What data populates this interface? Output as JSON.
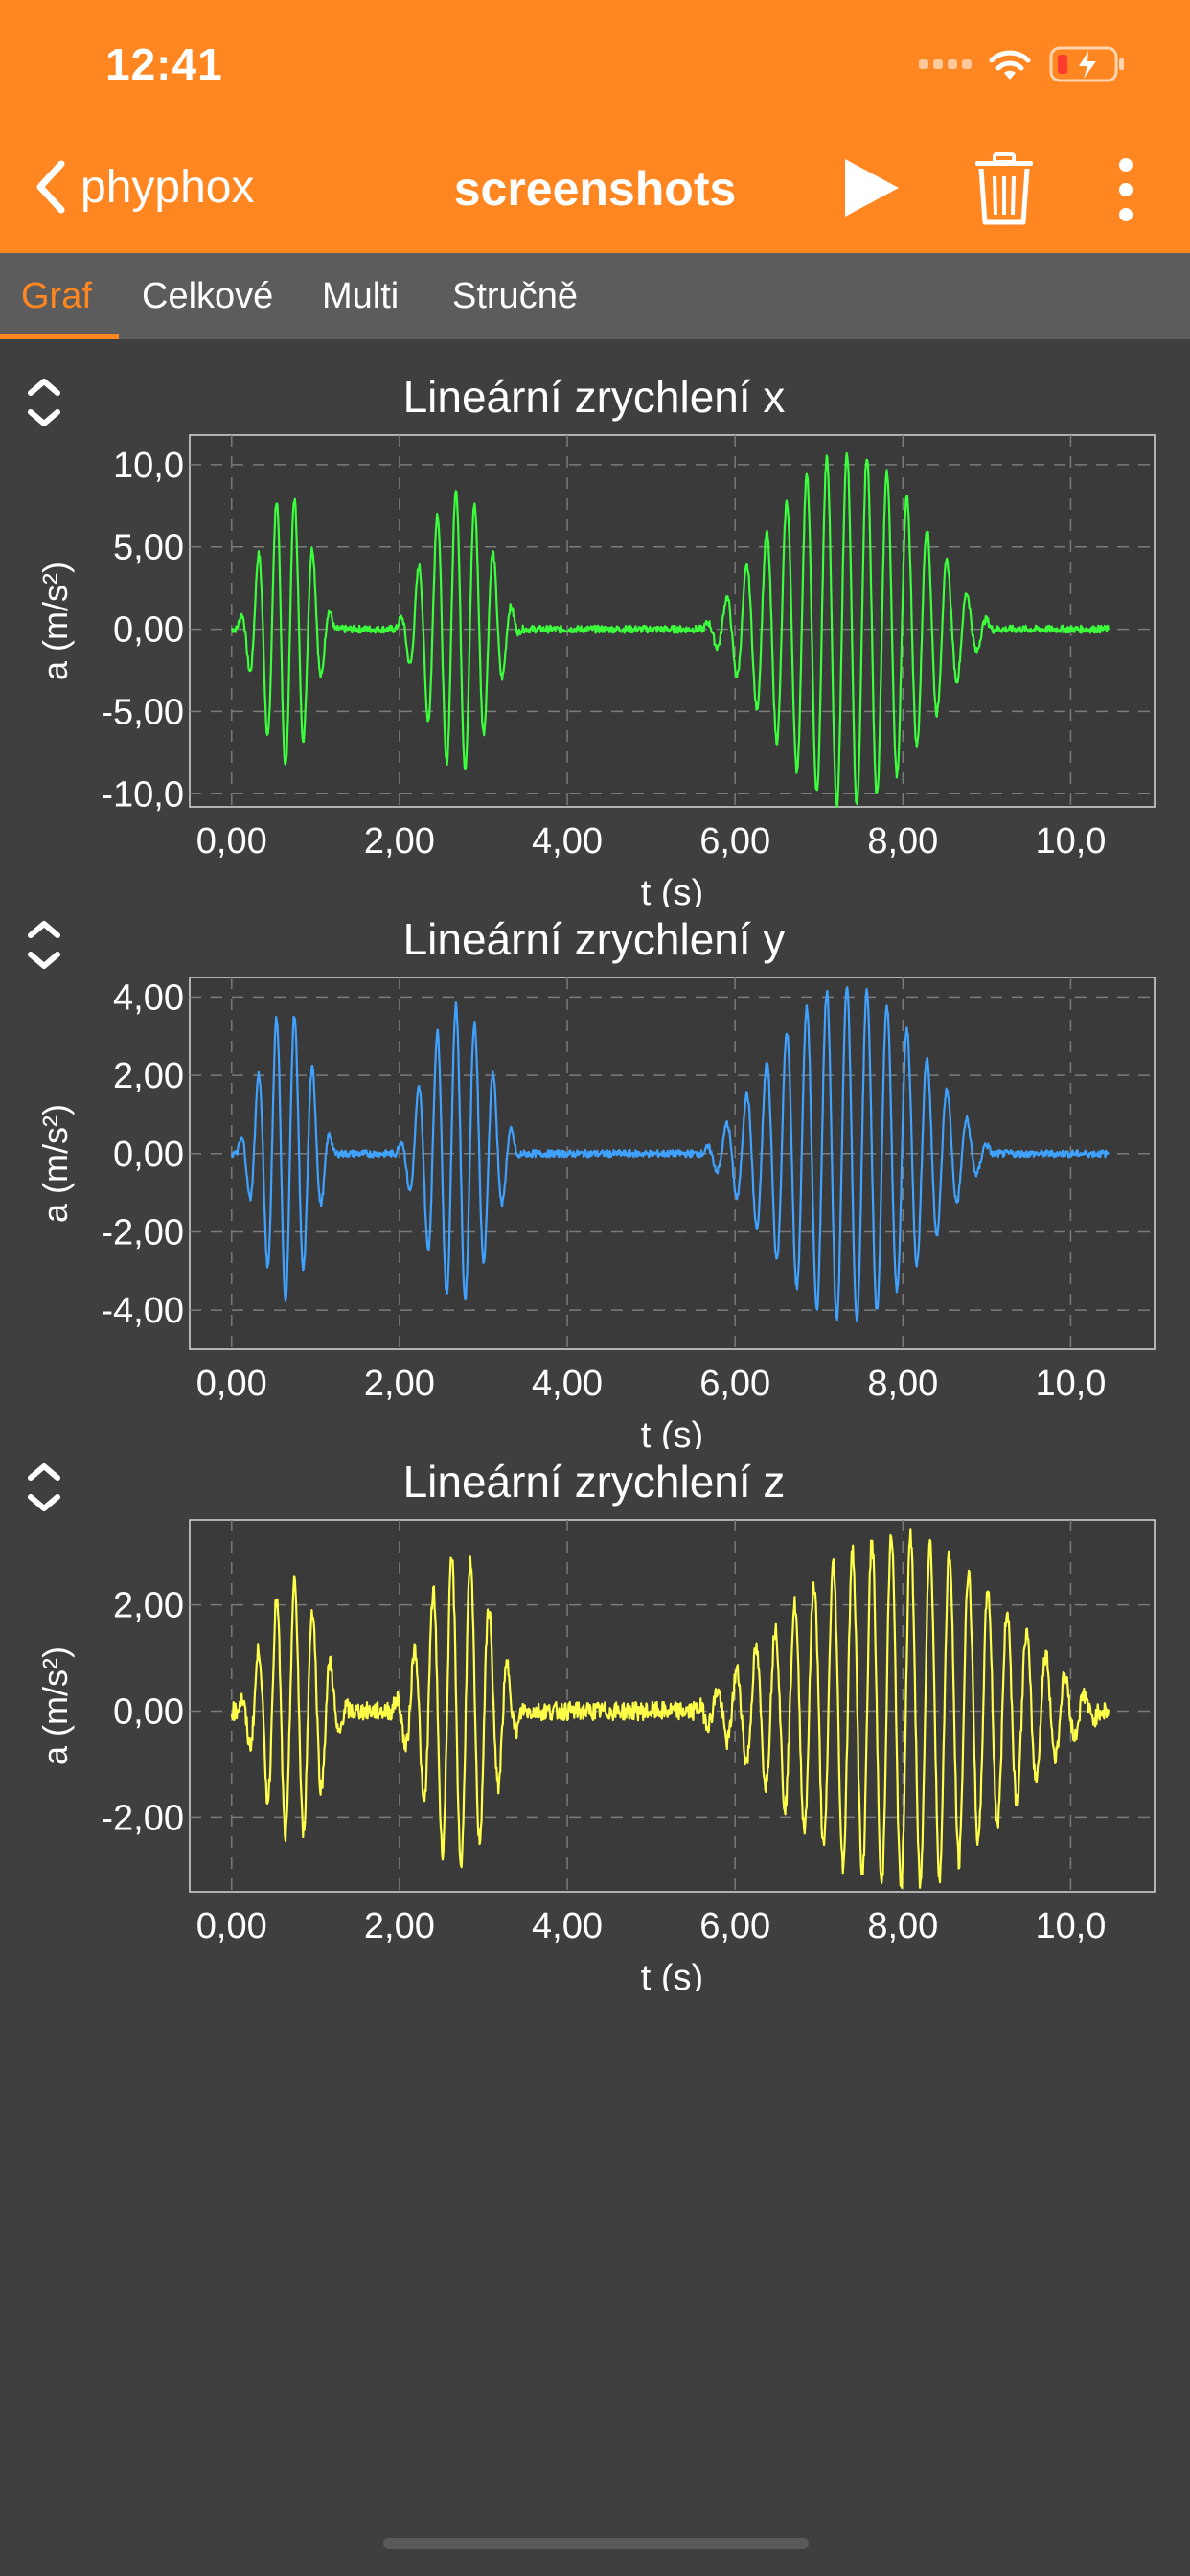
{
  "status_bar": {
    "time": "12:41",
    "icons": [
      "signal-dots-icon",
      "wifi-icon",
      "battery-charging-icon"
    ]
  },
  "nav": {
    "back_label": "phyphox",
    "title": "screenshots",
    "actions": [
      "play-icon",
      "trash-icon",
      "more-vertical-icon"
    ]
  },
  "tabs": [
    {
      "label": "Graf",
      "active": true
    },
    {
      "label": "Celkové",
      "active": false
    },
    {
      "label": "Multi",
      "active": false
    },
    {
      "label": "Stručně",
      "active": false
    }
  ],
  "colors": {
    "accent": "#ff8621",
    "background": "#3f3f3f",
    "plot_background": "#3a3a3a",
    "series_x": "#3cff3c",
    "series_y": "#3fa2ff",
    "series_z": "#ffff4a"
  },
  "chart_data": [
    {
      "type": "line",
      "title": "Lineární zrychlení x",
      "xlabel": "t (s)",
      "ylabel": "a (m/s²)",
      "xlim": [
        -0.5,
        11.0
      ],
      "ylim": [
        -10.8,
        11.8
      ],
      "xticks": [
        "0,00",
        "2,00",
        "4,00",
        "6,00",
        "8,00",
        "10,0"
      ],
      "xtick_values": [
        0,
        2,
        4,
        6,
        8,
        10
      ],
      "yticks": [
        "10,0",
        "5,00",
        "0,00",
        "-5,00",
        "-10,0"
      ],
      "ytick_values": [
        10,
        5,
        0,
        -5,
        -10
      ],
      "grid": true,
      "color": "#3cff3c",
      "bursts": [
        {
          "start": 0.05,
          "end": 1.25,
          "peak": 8.3,
          "freq": 3.0
        },
        {
          "start": 1.95,
          "end": 3.45,
          "peak": 8.6,
          "freq": 2.9
        },
        {
          "start": 5.6,
          "end": 9.1,
          "peak": 10.8,
          "freq": 2.7
        }
      ],
      "baseline_noise": 0.45
    },
    {
      "type": "line",
      "title": "Lineární zrychlení y",
      "xlabel": "t (s)",
      "ylabel": "a (m/s²)",
      "xlim": [
        -0.5,
        11.0
      ],
      "ylim": [
        -5.0,
        4.5
      ],
      "xticks": [
        "0,00",
        "2,00",
        "4,00",
        "6,00",
        "8,00",
        "10,0"
      ],
      "xtick_values": [
        0,
        2,
        4,
        6,
        8,
        10
      ],
      "yticks": [
        "4,00",
        "2,00",
        "0,00",
        "-2,00",
        "-4,00"
      ],
      "ytick_values": [
        4,
        2,
        0,
        -2,
        -4
      ],
      "grid": true,
      "color": "#3fa2ff",
      "bursts": [
        {
          "start": 0.05,
          "end": 1.25,
          "peak": 3.7,
          "freq": 3.0
        },
        {
          "start": 1.95,
          "end": 3.45,
          "peak": 3.8,
          "freq": 2.9
        },
        {
          "start": 5.6,
          "end": 9.1,
          "peak": 4.3,
          "freq": 2.7
        }
      ],
      "baseline_noise": 0.18
    },
    {
      "type": "line",
      "title": "Lineární zrychlení z",
      "xlabel": "t (s)",
      "ylabel": "a (m/s²)",
      "xlim": [
        -0.5,
        11.0
      ],
      "ylim": [
        -3.4,
        3.6
      ],
      "xticks": [
        "0,00",
        "2,00",
        "4,00",
        "6,00",
        "8,00",
        "10,0"
      ],
      "xtick_values": [
        0,
        2,
        4,
        6,
        8,
        10
      ],
      "yticks": [
        "2,00",
        "0,00",
        "-2,00"
      ],
      "ytick_values": [
        2,
        0,
        -2
      ],
      "grid": true,
      "color": "#ffff4a",
      "bursts": [
        {
          "start": 0.05,
          "end": 1.4,
          "peak": 2.4,
          "freq": 3.0
        },
        {
          "start": 1.9,
          "end": 3.5,
          "peak": 2.9,
          "freq": 2.9
        },
        {
          "start": 5.5,
          "end": 10.4,
          "peak": 3.3,
          "freq": 2.8
        }
      ],
      "baseline_noise": 0.35
    }
  ]
}
